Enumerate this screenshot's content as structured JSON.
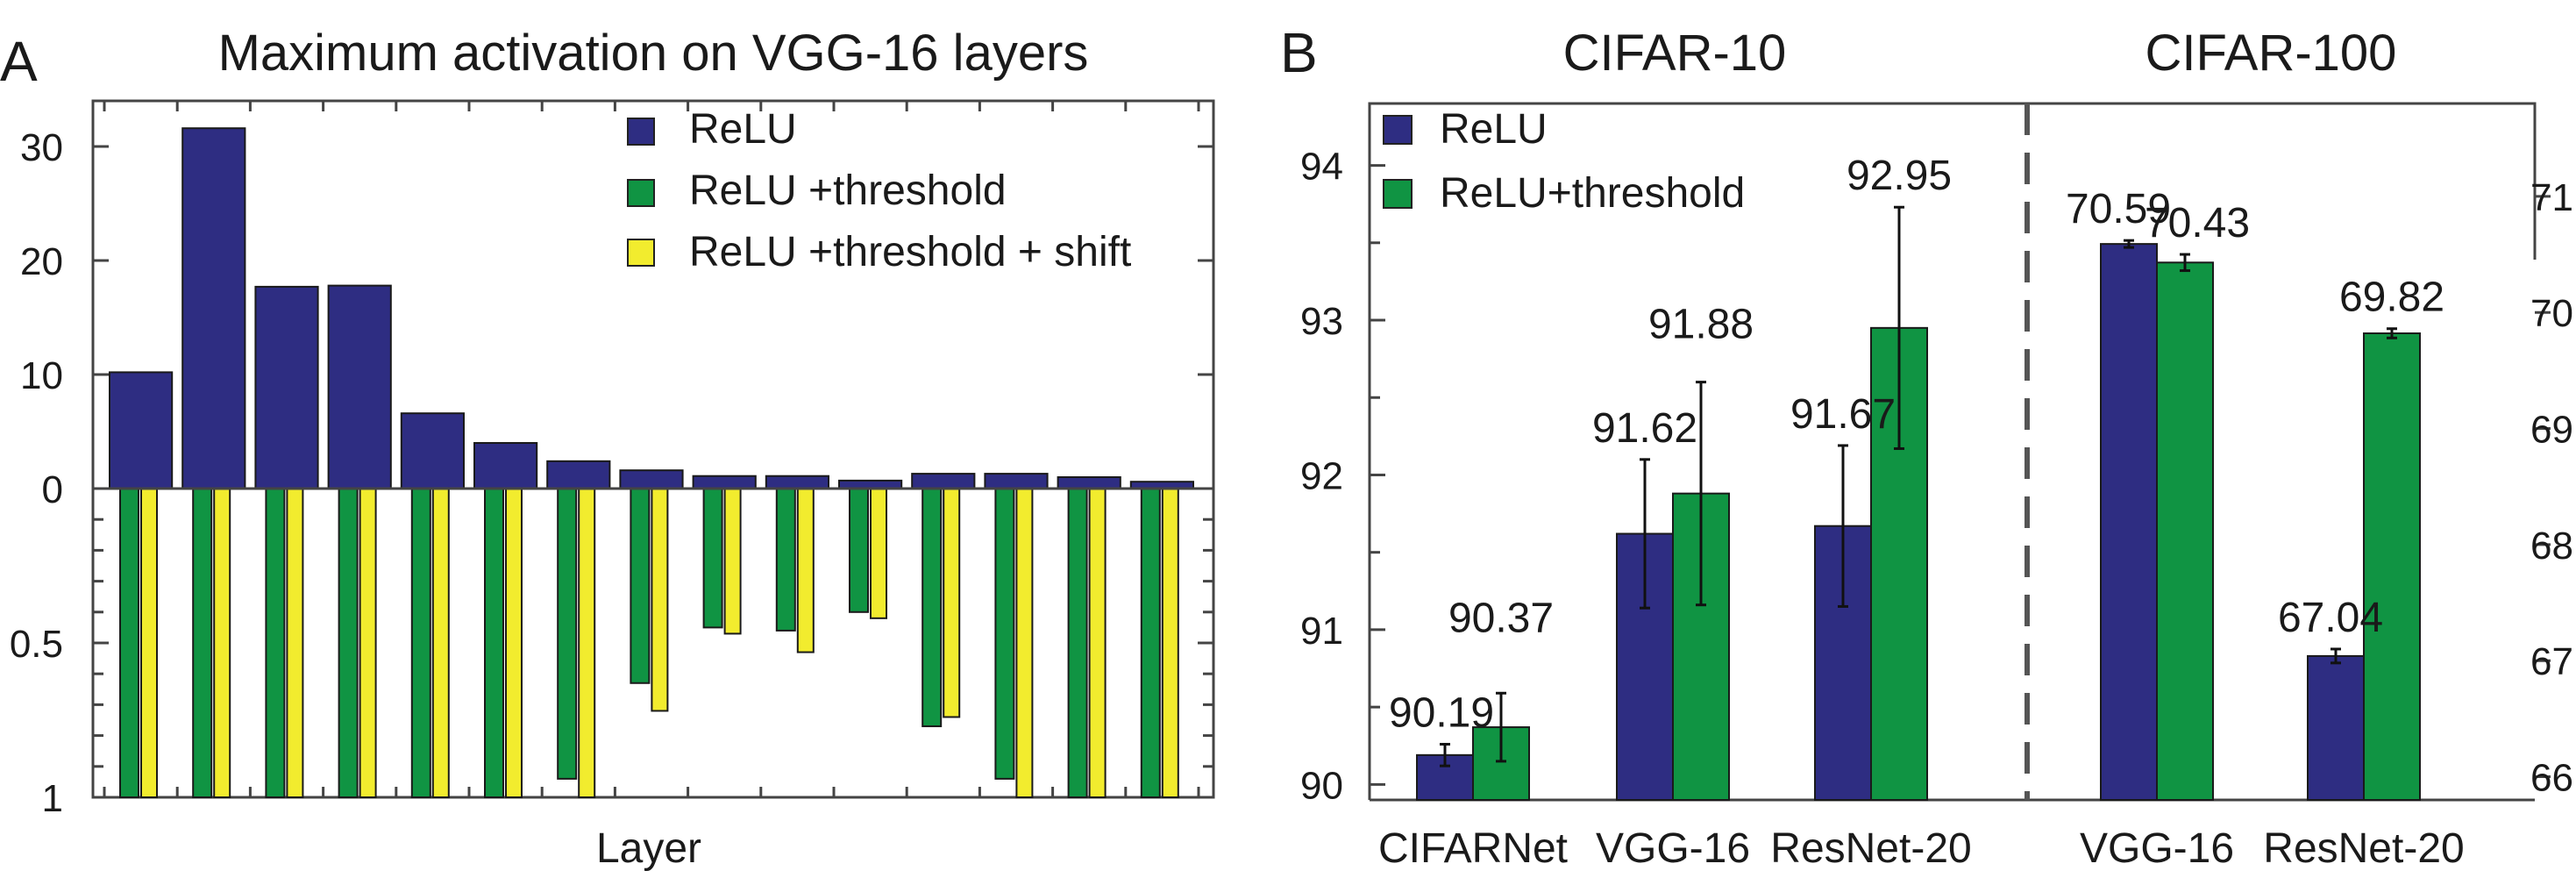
{
  "panel_a": {
    "letter": "A",
    "chart_data": {
      "type": "bar",
      "title": "Maximum activation on VGG-16 layers",
      "xlabel": "Layer",
      "ylabel": "",
      "upper": {
        "ylim": [
          0,
          34
        ],
        "yticks": [
          "0",
          "10",
          "20",
          "30"
        ],
        "series": [
          {
            "name": "ReLU",
            "values": [
              10.2,
              31.6,
              17.7,
              17.8,
              6.6,
              4.0,
              2.4,
              1.6,
              1.1,
              1.1,
              0.7,
              1.3,
              1.3,
              1.0,
              0.6
            ]
          }
        ]
      },
      "lower": {
        "ylim": [
          0,
          1
        ],
        "inverted": true,
        "yticks": [
          "0",
          "0.5",
          "1"
        ],
        "series": [
          {
            "name": "ReLU +threshold",
            "values": [
              1.0,
              1.0,
              1.0,
              1.0,
              1.0,
              1.0,
              0.94,
              0.63,
              0.45,
              0.46,
              0.4,
              0.77,
              0.94,
              1.0,
              1.0
            ]
          },
          {
            "name": "ReLU +threshold + shift",
            "values": [
              1.0,
              1.0,
              1.0,
              1.0,
              1.0,
              1.0,
              1.0,
              0.72,
              0.47,
              0.53,
              0.42,
              0.74,
              1.0,
              1.0,
              1.0
            ]
          }
        ]
      },
      "legend": [
        "ReLU",
        "ReLU +threshold",
        "ReLU +threshold + shift"
      ],
      "legend_position": "top-right",
      "colors": {
        "relu": "#2e2d82",
        "threshold": "#109443",
        "shift": "#f2ec2e"
      }
    }
  },
  "panel_b": {
    "letter": "B",
    "chart_data": [
      {
        "type": "bar",
        "title": "CIFAR-10",
        "categories": [
          "CIFARNet",
          "VGG-16",
          "ResNet-20"
        ],
        "ylim": [
          89.9,
          94.4
        ],
        "yticks": [
          "90",
          "91",
          "92",
          "93",
          "94"
        ],
        "series": [
          {
            "name": "ReLU",
            "values": [
              90.19,
              91.62,
              91.67
            ],
            "errors": [
              0.07,
              0.48,
              0.52
            ]
          },
          {
            "name": "ReLU+threshold",
            "values": [
              90.37,
              91.88,
              92.95
            ],
            "errors": [
              0.22,
              0.72,
              0.78
            ]
          }
        ],
        "data_labels": {
          "relu": [
            "90.19",
            "91.62",
            "91.67"
          ],
          "threshold": [
            "90.37",
            "91.88",
            "92.95"
          ]
        },
        "legend": [
          "ReLU",
          "ReLU+threshold"
        ],
        "legend_position": "top-left"
      },
      {
        "type": "bar",
        "title": "CIFAR-100",
        "categories": [
          "VGG-16",
          "ResNet-20"
        ],
        "ylim": [
          65.8,
          71.8
        ],
        "yticks": [
          "66",
          "67",
          "68",
          "69",
          "70",
          "71"
        ],
        "axis_side": "right",
        "series": [
          {
            "name": "ReLU",
            "values": [
              70.59,
              67.04
            ],
            "errors": [
              0.03,
              0.06
            ]
          },
          {
            "name": "ReLU+threshold",
            "values": [
              70.43,
              69.82
            ],
            "errors": [
              0.07,
              0.04
            ]
          }
        ],
        "data_labels": {
          "relu": [
            "70.59",
            "67.04"
          ],
          "threshold": [
            "70.43",
            "69.82"
          ]
        }
      }
    ],
    "colors": {
      "relu": "#2e2d82",
      "threshold": "#109443"
    }
  }
}
